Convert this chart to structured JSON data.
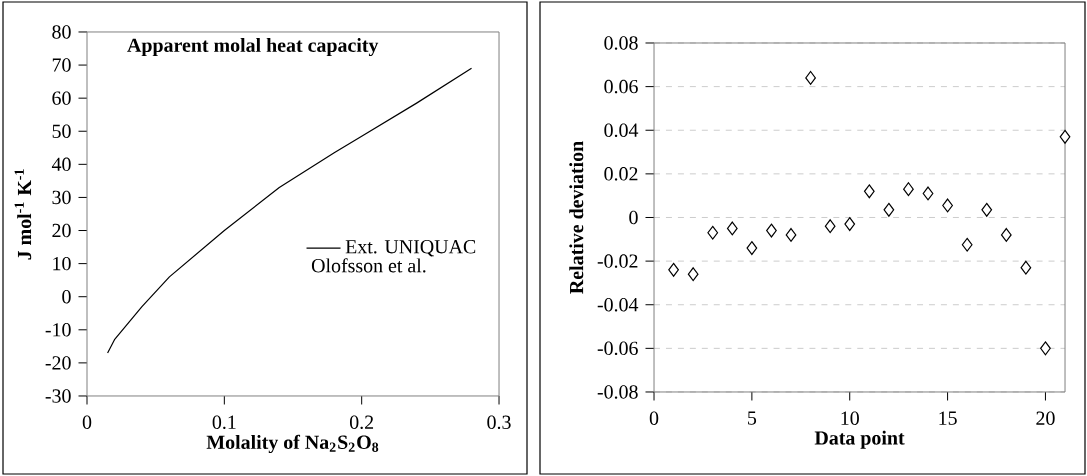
{
  "chart_data": [
    {
      "type": "line",
      "title": "Apparent molal heat capacity",
      "xlabel": "Molality of Na$_{2}$S$_{2}$O$_{8}$",
      "ylabel": "J mol$^{-1}$ K$^{-1}$",
      "x": [
        0.015,
        0.02,
        0.04,
        0.06,
        0.1,
        0.14,
        0.18,
        0.2,
        0.24,
        0.28
      ],
      "series": [
        {
          "name": "Ext. UNIQUAC",
          "color": "#000000",
          "values": [
            -17,
            -13,
            -3,
            6,
            20,
            33,
            43.5,
            48.5,
            58.5,
            69
          ]
        }
      ],
      "xlim": [
        0,
        0.3
      ],
      "ylim": [
        -30,
        80
      ],
      "xticks": [
        0,
        0.1,
        0.2,
        0.3
      ],
      "yticks": [
        -30,
        -20,
        -10,
        0,
        10,
        20,
        30,
        40,
        50,
        60,
        70,
        80
      ],
      "legend": "right",
      "annotations": [
        "Olofsson et al."
      ],
      "marker": "none"
    },
    {
      "type": "scatter",
      "xlabel": "Data point",
      "ylabel": "Relative deviation",
      "x": [
        1,
        2,
        3,
        4,
        5,
        6,
        7,
        8,
        9,
        10,
        11,
        12,
        13,
        14,
        15,
        16,
        17,
        18,
        19,
        20,
        21
      ],
      "values": [
        -0.024,
        -0.026,
        -0.007,
        -0.005,
        -0.014,
        -0.006,
        -0.008,
        0.064,
        -0.004,
        -0.003,
        0.012,
        0.0035,
        0.013,
        0.011,
        0.0055,
        -0.0125,
        0.0035,
        -0.008,
        -0.023,
        -0.06,
        0.037
      ],
      "color": "#000000",
      "marker": "diamond",
      "xlim": [
        0,
        21
      ],
      "ylim": [
        -0.08,
        0.08
      ],
      "xticks": [
        0,
        5,
        10,
        15,
        20
      ],
      "yticks": [
        -0.08,
        -0.06,
        -0.04,
        -0.02,
        0,
        0.02,
        0.04,
        0.06,
        0.08
      ],
      "grid": "y"
    }
  ]
}
